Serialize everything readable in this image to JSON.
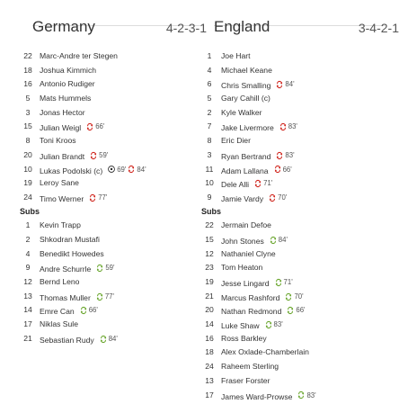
{
  "colors": {
    "sub_off": "#d0261e",
    "sub_on": "#6aa62e",
    "ball": "#222222"
  },
  "home": {
    "name": "Germany",
    "formation": "4-2-3-1",
    "subs_label": "Subs",
    "starters": [
      {
        "number": "22",
        "name": "Marc-Andre ter Stegen",
        "events": []
      },
      {
        "number": "18",
        "name": "Joshua Kimmich",
        "events": []
      },
      {
        "number": "16",
        "name": "Antonio Rudiger",
        "events": []
      },
      {
        "number": "5",
        "name": "Mats Hummels",
        "events": []
      },
      {
        "number": "3",
        "name": "Jonas Hector",
        "events": []
      },
      {
        "number": "15",
        "name": "Julian Weigl",
        "events": [
          {
            "icon": "sub-off-icon",
            "minute": "66'"
          }
        ]
      },
      {
        "number": "8",
        "name": "Toni Kroos",
        "events": []
      },
      {
        "number": "20",
        "name": "Julian Brandt",
        "events": [
          {
            "icon": "sub-off-icon",
            "minute": "59'"
          }
        ]
      },
      {
        "number": "10",
        "name": "Lukas Podolski (c)",
        "events": [
          {
            "icon": "goal-icon",
            "minute": "69'"
          },
          {
            "icon": "sub-off-icon",
            "minute": "84'"
          }
        ]
      },
      {
        "number": "19",
        "name": "Leroy Sane",
        "events": []
      },
      {
        "number": "24",
        "name": "Timo Werner",
        "events": [
          {
            "icon": "sub-off-icon",
            "minute": "77'"
          }
        ]
      }
    ],
    "subs": [
      {
        "number": "1",
        "name": "Kevin Trapp",
        "events": []
      },
      {
        "number": "2",
        "name": "Shkodran Mustafi",
        "events": []
      },
      {
        "number": "4",
        "name": "Benedikt Howedes",
        "events": []
      },
      {
        "number": "9",
        "name": "Andre Schurrle",
        "events": [
          {
            "icon": "sub-on-icon",
            "minute": "59'"
          }
        ]
      },
      {
        "number": "12",
        "name": "Bernd Leno",
        "events": []
      },
      {
        "number": "13",
        "name": "Thomas Muller",
        "events": [
          {
            "icon": "sub-on-icon",
            "minute": "77'"
          }
        ]
      },
      {
        "number": "14",
        "name": "Emre Can",
        "events": [
          {
            "icon": "sub-on-icon",
            "minute": "66'"
          }
        ]
      },
      {
        "number": "17",
        "name": "Niklas Sule",
        "events": []
      },
      {
        "number": "21",
        "name": "Sebastian Rudy",
        "events": [
          {
            "icon": "sub-on-icon",
            "minute": "84'"
          }
        ]
      }
    ]
  },
  "away": {
    "name": "England",
    "formation": "3-4-2-1",
    "subs_label": "Subs",
    "starters": [
      {
        "number": "1",
        "name": "Joe Hart",
        "events": []
      },
      {
        "number": "4",
        "name": "Michael Keane",
        "events": []
      },
      {
        "number": "6",
        "name": "Chris Smalling",
        "events": [
          {
            "icon": "sub-off-icon",
            "minute": "84'"
          }
        ]
      },
      {
        "number": "5",
        "name": "Gary Cahill (c)",
        "events": []
      },
      {
        "number": "2",
        "name": "Kyle Walker",
        "events": []
      },
      {
        "number": "7",
        "name": "Jake Livermore",
        "events": [
          {
            "icon": "sub-off-icon",
            "minute": "83'"
          }
        ]
      },
      {
        "number": "8",
        "name": "Eric Dier",
        "events": []
      },
      {
        "number": "3",
        "name": "Ryan Bertrand",
        "events": [
          {
            "icon": "sub-off-icon",
            "minute": "83'"
          }
        ]
      },
      {
        "number": "11",
        "name": "Adam Lallana",
        "events": [
          {
            "icon": "sub-off-icon",
            "minute": "66'"
          }
        ]
      },
      {
        "number": "10",
        "name": "Dele Alli",
        "events": [
          {
            "icon": "sub-off-icon",
            "minute": "71'"
          }
        ]
      },
      {
        "number": "9",
        "name": "Jamie Vardy",
        "events": [
          {
            "icon": "sub-off-icon",
            "minute": "70'"
          }
        ]
      }
    ],
    "subs": [
      {
        "number": "22",
        "name": "Jermain Defoe",
        "events": []
      },
      {
        "number": "15",
        "name": "John Stones",
        "events": [
          {
            "icon": "sub-on-icon",
            "minute": "84'"
          }
        ]
      },
      {
        "number": "12",
        "name": "Nathaniel Clyne",
        "events": []
      },
      {
        "number": "23",
        "name": "Tom Heaton",
        "events": []
      },
      {
        "number": "19",
        "name": "Jesse Lingard",
        "events": [
          {
            "icon": "sub-on-icon",
            "minute": "71'"
          }
        ]
      },
      {
        "number": "21",
        "name": "Marcus Rashford",
        "events": [
          {
            "icon": "sub-on-icon",
            "minute": "70'"
          }
        ]
      },
      {
        "number": "20",
        "name": "Nathan Redmond",
        "events": [
          {
            "icon": "sub-on-icon",
            "minute": "66'"
          }
        ]
      },
      {
        "number": "14",
        "name": "Luke Shaw",
        "events": [
          {
            "icon": "sub-on-icon",
            "minute": "83'"
          }
        ]
      },
      {
        "number": "16",
        "name": "Ross Barkley",
        "events": []
      },
      {
        "number": "18",
        "name": "Alex Oxlade-Chamberlain",
        "events": []
      },
      {
        "number": "24",
        "name": "Raheem Sterling",
        "events": []
      },
      {
        "number": "13",
        "name": "Fraser Forster",
        "events": []
      },
      {
        "number": "17",
        "name": "James Ward-Prowse",
        "events": [
          {
            "icon": "sub-on-icon",
            "minute": "83'"
          }
        ]
      }
    ]
  }
}
